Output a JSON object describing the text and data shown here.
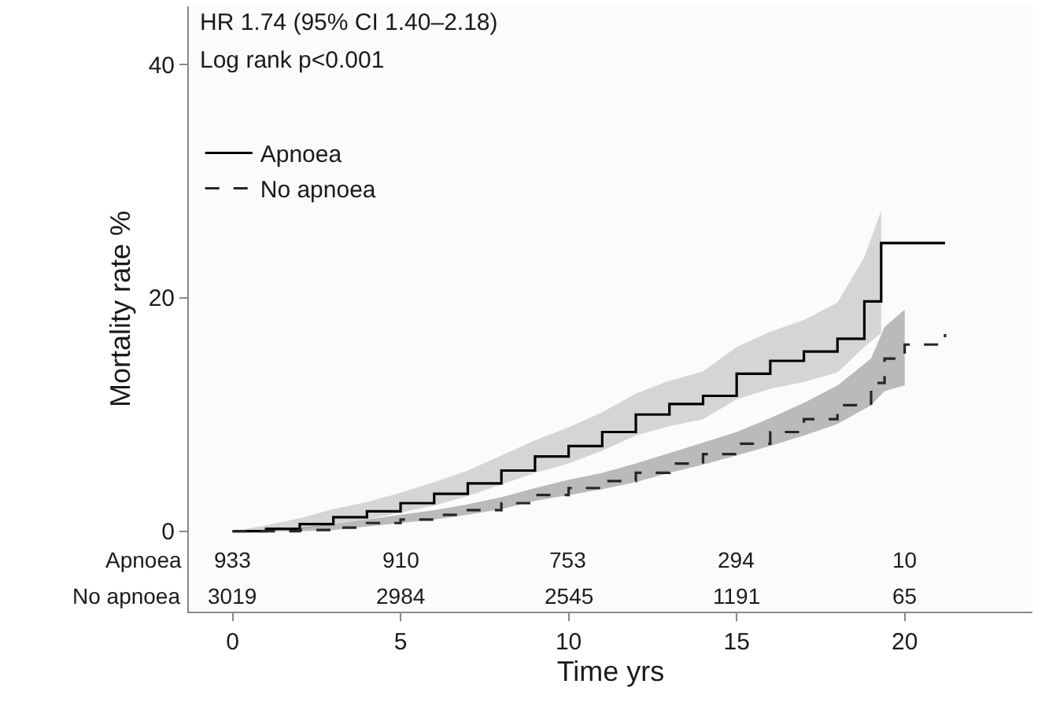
{
  "chart_data": {
    "type": "step",
    "xlabel": "Time yrs",
    "ylabel": "Mortality rate %",
    "xlim": [
      -1.3,
      23.8
    ],
    "xticks": [
      0,
      5,
      10,
      15,
      20
    ],
    "ylim": [
      -6.9,
      45
    ],
    "yticks": [
      0,
      20,
      40
    ],
    "legend": "top left",
    "marker": "none",
    "annotations": [
      "HR 1.74 (95% CI 1.40–2.18)",
      "Log rank p<0.001",
      "Apnoea",
      "933",
      "910",
      "753",
      "294",
      "10",
      "No apnoea",
      "3019",
      "2984",
      "2545",
      "1191",
      "65"
    ],
    "series": [
      {
        "name": "Apnoea",
        "color": "#000000",
        "line_style": "solid",
        "x": [
          0,
          1,
          2,
          3,
          4,
          5,
          6,
          7,
          8,
          9,
          10,
          11,
          12,
          13,
          14,
          15,
          16,
          17,
          18,
          18.8,
          19.3,
          21.2
        ],
        "values": [
          0,
          0.2,
          0.6,
          1.2,
          1.7,
          2.4,
          3.2,
          4.1,
          5.2,
          6.4,
          7.3,
          8.5,
          10.0,
          10.9,
          11.6,
          13.5,
          14.6,
          15.4,
          16.5,
          19.7,
          24.7,
          24.7
        ],
        "lower": [
          0,
          0,
          0.2,
          0.6,
          1.0,
          1.6,
          2.2,
          3.0,
          4.0,
          5.0,
          5.8,
          6.9,
          8.2,
          9.0,
          9.6,
          11.3,
          12.2,
          12.8,
          13.6,
          15.8,
          17,
          null
        ],
        "upper": [
          0,
          0.5,
          1.1,
          1.9,
          2.5,
          3.3,
          4.2,
          5.2,
          6.5,
          7.8,
          8.9,
          10.2,
          11.8,
          12.9,
          13.7,
          15.8,
          17.1,
          18.1,
          19.6,
          23.5,
          27.5,
          null
        ]
      },
      {
        "name": "No apnoea",
        "color": "#262626",
        "line_style": "dashed",
        "x": [
          0,
          2,
          3,
          4,
          5,
          6,
          7,
          8,
          9,
          10,
          11,
          12,
          13,
          14,
          15,
          16,
          17,
          18,
          19,
          19.4,
          20,
          21.2
        ],
        "values": [
          0,
          0.1,
          0.3,
          0.7,
          1.0,
          1.4,
          1.8,
          2.4,
          3.1,
          3.7,
          4.3,
          5.0,
          5.8,
          6.6,
          7.5,
          8.5,
          9.6,
          10.8,
          12.7,
          14.8,
          16.0,
          16.9
        ],
        "lower": [
          0,
          0,
          0.1,
          0.4,
          0.7,
          1.0,
          1.4,
          1.9,
          2.6,
          3.1,
          3.6,
          4.2,
          5.0,
          5.7,
          6.5,
          7.3,
          8.2,
          9.2,
          10.8,
          12.0,
          12.5,
          null
        ],
        "upper": [
          0,
          0.3,
          0.6,
          1.0,
          1.4,
          1.8,
          2.3,
          2.9,
          3.7,
          4.4,
          5.0,
          5.8,
          6.7,
          7.6,
          8.5,
          9.7,
          11.0,
          12.5,
          14.8,
          17.5,
          19.0,
          null
        ]
      }
    ]
  }
}
